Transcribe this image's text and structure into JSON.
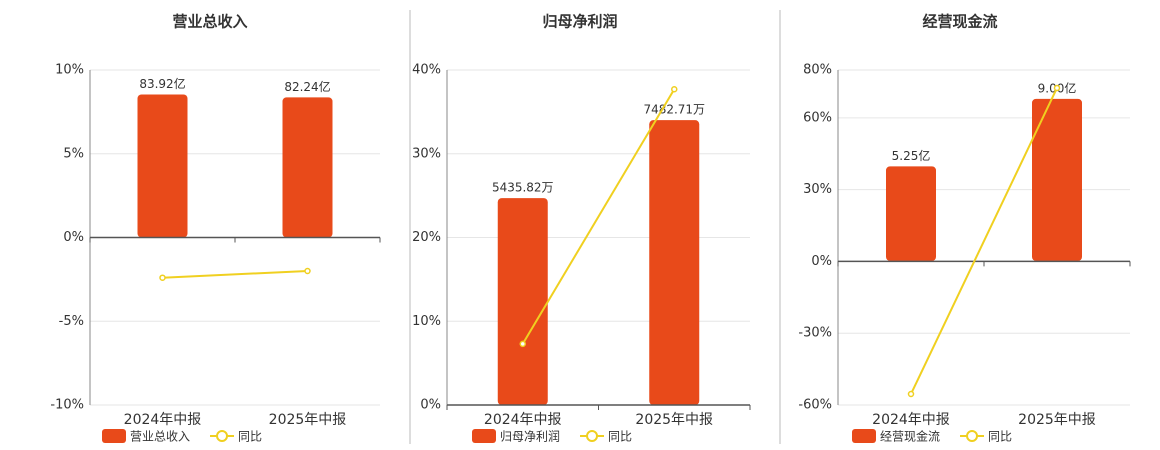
{
  "chart_data": [
    {
      "type": "bar-line",
      "title": "营业总收入",
      "categories": [
        "2024年中报",
        "2025年中报"
      ],
      "series": [
        {
          "name": "营业总收入",
          "type": "bar",
          "axis": "y2",
          "color": "#e84a1a",
          "values": [
            83.92,
            82.24
          ],
          "value_labels": [
            "83.92亿",
            "82.24亿"
          ]
        },
        {
          "name": "同比",
          "type": "line",
          "color": "#f0d020",
          "values": [
            -2.4,
            -2.0
          ]
        }
      ],
      "ylim": [
        -10,
        10
      ],
      "yticks": [
        {
          "value": -10,
          "label": "-10%"
        },
        {
          "value": -5,
          "label": "-5%"
        },
        {
          "value": 0,
          "label": "0%"
        },
        {
          "value": 5,
          "label": "5%"
        },
        {
          "value": 10,
          "label": "10%"
        }
      ],
      "y2lim": [
        -98.3,
        98.3
      ],
      "grid": true
    },
    {
      "type": "bar-line",
      "title": "归母净利润",
      "categories": [
        "2024年中报",
        "2025年中报"
      ],
      "series": [
        {
          "name": "归母净利润",
          "type": "bar",
          "axis": "y2",
          "color": "#e84a1a",
          "values": [
            5435.82,
            7482.71
          ],
          "value_labels": [
            "5435.82万",
            "7482.71万"
          ]
        },
        {
          "name": "同比",
          "type": "line",
          "color": "#f0d020",
          "values": [
            7.3,
            37.7
          ]
        }
      ],
      "ylim": [
        0,
        40
      ],
      "yticks": [
        {
          "value": 0,
          "label": "0%"
        },
        {
          "value": 10,
          "label": "10%"
        },
        {
          "value": 20,
          "label": "20%"
        },
        {
          "value": 30,
          "label": "30%"
        },
        {
          "value": 40,
          "label": "40%"
        }
      ],
      "y2lim": [
        0,
        8800
      ],
      "grid": true
    },
    {
      "type": "bar-line",
      "title": "经营现金流",
      "categories": [
        "2024年中报",
        "2025年中报"
      ],
      "series": [
        {
          "name": "经营现金流",
          "type": "bar",
          "axis": "y2",
          "color": "#e84a1a",
          "values": [
            5.25,
            9.0
          ],
          "value_labels": [
            "5.25亿",
            "9.00亿"
          ]
        },
        {
          "name": "同比",
          "type": "line",
          "color": "#f0d020",
          "values": [
            -55.4,
            72.5
          ]
        }
      ],
      "ylim": [
        -60,
        80
      ],
      "yticks": [
        {
          "value": -60,
          "label": "-60%"
        },
        {
          "value": -30,
          "label": "-30%"
        },
        {
          "value": 0,
          "label": "0%"
        },
        {
          "value": 30,
          "label": "30%"
        },
        {
          "value": 60,
          "label": "60%"
        },
        {
          "value": 80,
          "label": "80%"
        }
      ],
      "y2lim": [
        -8.0,
        10.6
      ],
      "grid": true
    }
  ]
}
